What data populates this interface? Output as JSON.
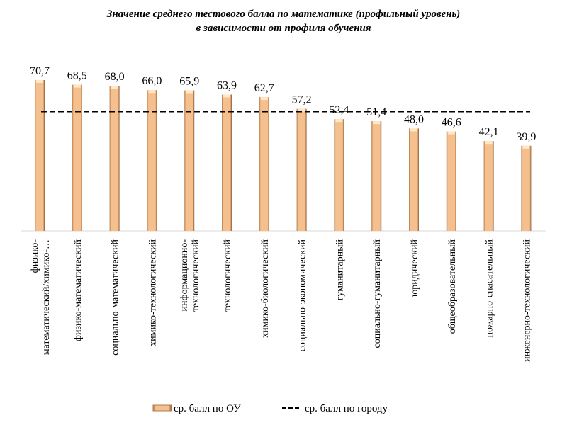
{
  "chart_data": {
    "type": "bar",
    "title_line1": "Значение среднего тестового балла по математике (профильный уровень)",
    "title_line2": "в зависимости от профиля обучения",
    "categories": [
      [
        "физико-",
        "математический/химико-…"
      ],
      [
        "физико-математический"
      ],
      [
        "социально-математический"
      ],
      [
        "химико-технологический"
      ],
      [
        "информационно-",
        "технологический"
      ],
      [
        "технологический"
      ],
      [
        "химико-биологический"
      ],
      [
        "социально-экономический"
      ],
      [
        "гуманитарный"
      ],
      [
        "социально-гуманитарный"
      ],
      [
        "юридический"
      ],
      [
        "общеобразовательный"
      ],
      [
        "пожарно-спасательный"
      ],
      [
        "инженерно-технологический"
      ]
    ],
    "series": [
      {
        "name": "ср. балл по ОУ",
        "type": "bar",
        "color": "#f5c08e",
        "values": [
          70.7,
          68.5,
          68.0,
          66.0,
          65.9,
          63.9,
          62.7,
          57.2,
          52.4,
          51.4,
          48.0,
          46.6,
          42.1,
          39.9
        ],
        "labels": [
          "70,7",
          "68,5",
          "68,0",
          "66,0",
          "65,9",
          "63,9",
          "62,7",
          "57,2",
          "52,4",
          "51,4",
          "48,0",
          "46,6",
          "42,1",
          "39,9"
        ]
      },
      {
        "name": "ср. балл по городу",
        "type": "line",
        "style": "dashed",
        "color": "#000000",
        "value": 56
      }
    ],
    "ylim": [
      0,
      72
    ],
    "grid": false,
    "legend": "bottom"
  }
}
